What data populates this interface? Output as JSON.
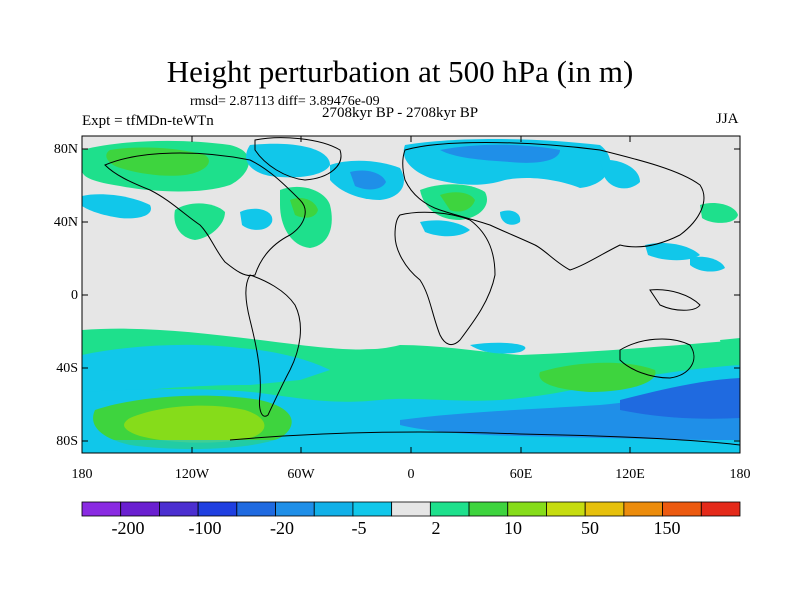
{
  "title": "Height perturbation at 500 hPa (in m)",
  "stats": "rmsd= 2.87113 diff= 3.89476e-09",
  "experiment": "Expt = tfMDn-teWTn",
  "period": "2708kyr BP - 2708kyr BP",
  "season": "JJA",
  "lat_labels": [
    "80N",
    "40N",
    "0",
    "40S",
    "80S"
  ],
  "lon_labels": [
    "180",
    "120W",
    "60W",
    "0",
    "60E",
    "120E",
    "180"
  ],
  "colorbar": {
    "labels": [
      "-200",
      "-100",
      "-20",
      "-5",
      "2",
      "10",
      "50",
      "150"
    ],
    "colors": [
      "#8a2be2",
      "#6a1fd0",
      "#4b2fd0",
      "#1f3fe0",
      "#1f6ae0",
      "#1f8fe8",
      "#11b0e8",
      "#11c7ea",
      "#e6e6e6",
      "#1ee08c",
      "#3ed43e",
      "#86dc1a",
      "#c6dc10",
      "#e6c00c",
      "#ec8c0c",
      "#ec5a10",
      "#e42a1a"
    ]
  }
}
